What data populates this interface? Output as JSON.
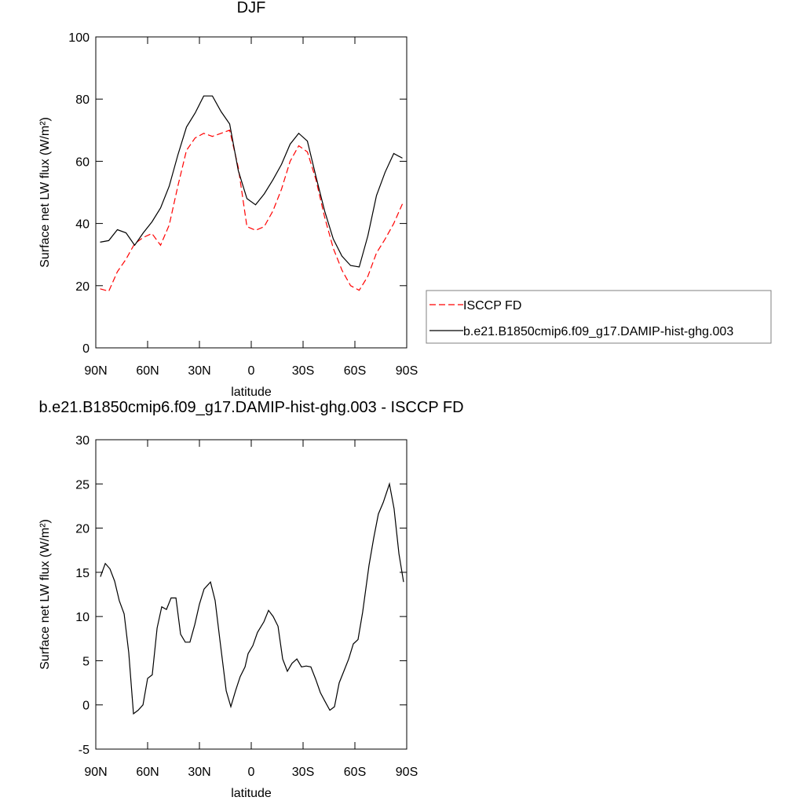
{
  "chart_data": [
    {
      "type": "line",
      "title": "DJF",
      "x_label": "latitude",
      "y_label": "Surface net LW flux (W/m²)",
      "x": [
        87.5,
        82.5,
        77.5,
        72.5,
        67.5,
        62.5,
        57.5,
        52.5,
        47.5,
        42.5,
        37.5,
        32.5,
        27.5,
        22.5,
        17.5,
        12.5,
        7.5,
        2.5,
        -2.5,
        -7.5,
        -12.5,
        -17.5,
        -22.5,
        -27.5,
        -32.5,
        -37.5,
        -42.5,
        -47.5,
        -52.5,
        -57.5,
        -62.5,
        -67.5,
        -72.5,
        -77.5,
        -82.5,
        -87.5
      ],
      "series": [
        {
          "name": "ISCCP FD",
          "color": "#ff0000",
          "dash": "dashed",
          "values": [
            19,
            18.2,
            24.5,
            28.5,
            33.5,
            35.5,
            36.8,
            33,
            39.5,
            52,
            63.5,
            67.5,
            69,
            68,
            69,
            70,
            58,
            39,
            37.8,
            39,
            44,
            51,
            60,
            65,
            63,
            54,
            42,
            32,
            25,
            20,
            18.5,
            23,
            30.5,
            35,
            40,
            46.3
          ]
        },
        {
          "name": "b.e21.B1850cmip6.f09_g17.DAMIP-hist-ghg.003",
          "color": "#000000",
          "dash": "solid",
          "values": [
            34,
            34.5,
            38,
            37,
            33,
            37,
            40.5,
            45,
            52,
            62,
            71,
            75.5,
            81,
            81,
            76,
            72,
            57,
            48,
            46,
            49.5,
            54,
            59,
            65.5,
            69,
            66.5,
            55,
            44,
            35,
            29.5,
            26.5,
            26,
            36,
            49,
            56.5,
            62.5,
            61
          ]
        }
      ],
      "xlim": [
        90,
        -90
      ],
      "xticks": [
        {
          "value": 90,
          "label": "90N"
        },
        {
          "value": 60,
          "label": "60N"
        },
        {
          "value": 30,
          "label": "30N"
        },
        0,
        {
          "value": -30,
          "label": "30S"
        },
        {
          "value": -60,
          "label": "60S"
        },
        {
          "value": -90,
          "label": "90S"
        }
      ],
      "ylim": [
        0,
        100
      ],
      "yticks": [
        0,
        20,
        40,
        60,
        80,
        100
      ],
      "legend": "right"
    },
    {
      "type": "line",
      "title": "b.e21.B1850cmip6.f09_g17.DAMIP-hist-ghg.003 - ISCCP FD",
      "x_label": "latitude",
      "y_label": "Surface net LW flux (W/m²)",
      "x": [
        87.3,
        84.5,
        81.8,
        79.1,
        76.4,
        73.6,
        70.9,
        68.2,
        65.5,
        62.7,
        60,
        57.3,
        54.5,
        51.8,
        49.1,
        46.4,
        43.6,
        40.9,
        38.2,
        35.5,
        32.7,
        30,
        27.3,
        23.6,
        20.9,
        18.2,
        14.5,
        11.8,
        9.1,
        6.4,
        3.6,
        1.8,
        -0.9,
        -3.6,
        -7.3,
        -10,
        -12.7,
        -15.5,
        -18.2,
        -20.9,
        -23.6,
        -26.4,
        -29.1,
        -31.8,
        -34.5,
        -37.3,
        -40,
        -42.7,
        -45.5,
        -48.2,
        -50.9,
        -53.6,
        -56.4,
        -59.1,
        -61.8,
        -64.5,
        -68.2,
        -70.9,
        -73.6,
        -76.4,
        -80,
        -82.7,
        -85.5,
        -88.2
      ],
      "series": [
        {
          "color": "#000000",
          "dash": "solid",
          "values": [
            14.5,
            16,
            15.4,
            14,
            11.8,
            10.3,
            5.9,
            -1,
            -0.6,
            0,
            3,
            3.4,
            8.7,
            11.1,
            10.8,
            12.1,
            12.1,
            8,
            7.1,
            7.1,
            9.1,
            11.4,
            13.1,
            13.9,
            11.8,
            7.4,
            1.6,
            -0.2,
            1.6,
            3.2,
            4.3,
            5.8,
            6.7,
            8.2,
            9.4,
            10.7,
            10,
            8.9,
            5.2,
            3.8,
            4.7,
            5.2,
            4.3,
            4.4,
            4.3,
            2.9,
            1.4,
            0.4,
            -0.6,
            -0.2,
            2.5,
            3.8,
            5.2,
            6.9,
            7.4,
            10.5,
            15.8,
            18.9,
            21.6,
            22.9,
            25,
            22.2,
            17.1,
            13.9
          ]
        }
      ],
      "xlim": [
        90,
        -90
      ],
      "xticks": [
        {
          "value": 90,
          "label": "90N"
        },
        {
          "value": 60,
          "label": "60N"
        },
        {
          "value": 30,
          "label": "30N"
        },
        0,
        {
          "value": -30,
          "label": "30S"
        },
        {
          "value": -60,
          "label": "60S"
        },
        {
          "value": -90,
          "label": "90S"
        }
      ],
      "ylim": [
        -5,
        30
      ],
      "yticks": [
        -5,
        0,
        5,
        10,
        15,
        20,
        25,
        30
      ]
    }
  ]
}
